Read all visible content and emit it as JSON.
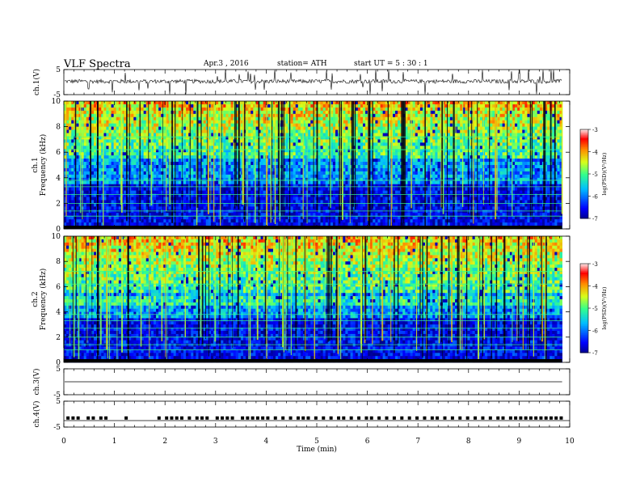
{
  "header": {
    "title": "VLF  Spectra",
    "date": "Apr.3   , 2016",
    "station": "station= ATH",
    "start": "start  UT  =    5  : 30 : 1"
  },
  "chart_data": [
    {
      "type": "line",
      "panel": "ch1-waveform",
      "ylabel": "ch.1(V)",
      "ylim": [
        -5,
        5
      ],
      "yticks": [
        "5",
        "-5"
      ],
      "xlim": [
        0,
        10
      ],
      "baseline": 0.3
    },
    {
      "type": "heatmap",
      "panel": "ch1-spectrogram",
      "ylabel": "ch.1\nFrequency  (kHz)",
      "ylim": [
        0,
        10
      ],
      "yticks": [
        "0",
        "2",
        "4",
        "6",
        "8",
        "10"
      ],
      "xlim": [
        0,
        10
      ],
      "colorbar": {
        "label": "log(PSD)(V²/Hz)",
        "range": [
          -7,
          -3
        ],
        "ticks": [
          "-3",
          "-4",
          "-5",
          "-6",
          "-7"
        ]
      }
    },
    {
      "type": "heatmap",
      "panel": "ch2-spectrogram",
      "ylabel": "ch.2\nFrequency  (kHz)",
      "ylim": [
        0,
        10
      ],
      "yticks": [
        "0",
        "2",
        "4",
        "6",
        "8",
        "10"
      ],
      "xlim": [
        0,
        10
      ],
      "colorbar": {
        "label": "log(PSD)(V²/Hz)",
        "range": [
          -7,
          -3
        ],
        "ticks": [
          "-3",
          "-4",
          "-5",
          "-6",
          "-7"
        ]
      }
    },
    {
      "type": "line",
      "panel": "ch3-waveform",
      "ylabel": "ch.3(V)",
      "ylim": [
        -5,
        5
      ],
      "yticks": [
        "5",
        "-5"
      ],
      "xlim": [
        0,
        10
      ],
      "baseline": 0
    },
    {
      "type": "line",
      "panel": "ch4-waveform",
      "ylabel": "ch.4(V)",
      "ylim": [
        -5,
        5
      ],
      "yticks": [
        "5",
        "-5"
      ],
      "xlim": [
        0,
        10
      ],
      "xlabel": "Time  (min)",
      "xticks": [
        "0",
        "1",
        "2",
        "3",
        "4",
        "5",
        "6",
        "7",
        "8",
        "9",
        "10"
      ],
      "baseline": -2.5,
      "pulse_level": -1.5
    }
  ]
}
